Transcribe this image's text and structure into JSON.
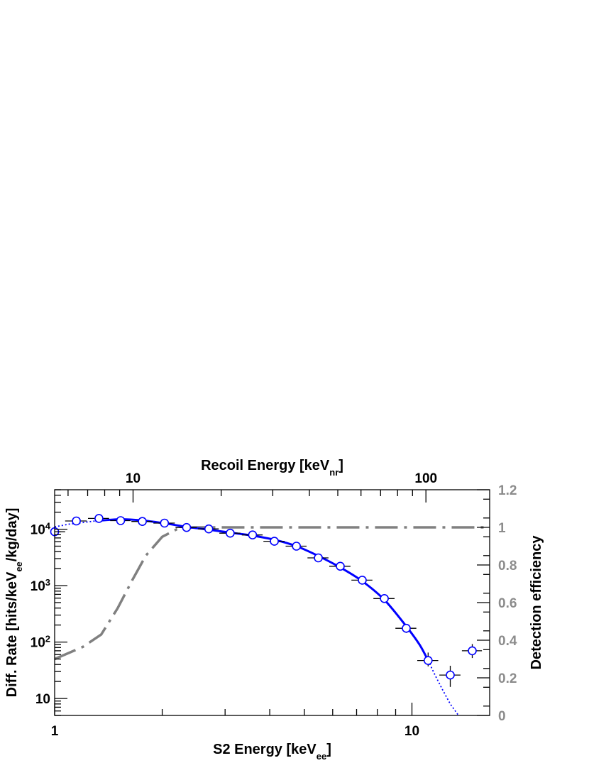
{
  "chart_data": {
    "type": "scatter",
    "x_axis": {
      "label": "S2 Energy [keV",
      "label_sub": "ee",
      "label_end": "]",
      "scale": "log",
      "range": [
        1,
        16.5
      ],
      "tick_labels": [
        {
          "value": 1,
          "text": "1"
        },
        {
          "value": 10,
          "text": "10"
        }
      ]
    },
    "top_axis": {
      "label": "Recoil Energy [keV",
      "label_sub": "nr",
      "label_end": "]",
      "scale": "log",
      "range": [
        5.4,
        165
      ],
      "tick_labels": [
        {
          "value": 10,
          "text": "10"
        },
        {
          "value": 100,
          "text": "100"
        }
      ]
    },
    "y_axis": {
      "label": "Diff. Rate [hits/keV",
      "label_sub": "ee",
      "label_end": "/kg/day]",
      "scale": "log",
      "range": [
        5,
        50000
      ],
      "tick_labels": [
        {
          "value": 10,
          "base": "10",
          "exp": ""
        },
        {
          "value": 100,
          "base": "10",
          "exp": "2"
        },
        {
          "value": 1000,
          "base": "10",
          "exp": "3"
        },
        {
          "value": 10000,
          "base": "10",
          "exp": "4"
        }
      ]
    },
    "y2_axis": {
      "label": "Detection efficiency",
      "range": [
        0,
        1.2
      ],
      "tick_labels": [
        "0",
        "0.2",
        "0.4",
        "0.6",
        "0.8",
        "1",
        "1.2"
      ]
    },
    "series": [
      {
        "kind": "data-points",
        "color": "#0000ff",
        "points": [
          {
            "x": 1.0,
            "y": 9000,
            "xerr": [
              0.05,
              0.07
            ],
            "yerr": [
              500,
              500
            ]
          },
          {
            "x": 1.15,
            "y": 14000,
            "xerr": [
              0.08,
              0.08
            ],
            "yerr": [
              600,
              600
            ]
          },
          {
            "x": 1.33,
            "y": 15500,
            "xerr": [
              0.09,
              0.09
            ],
            "yerr": [
              600,
              600
            ]
          },
          {
            "x": 1.53,
            "y": 14200,
            "xerr": [
              0.1,
              0.1
            ],
            "yerr": [
              600,
              600
            ]
          },
          {
            "x": 1.76,
            "y": 13700,
            "xerr": [
              0.12,
              0.12
            ],
            "yerr": [
              600,
              600
            ]
          },
          {
            "x": 2.03,
            "y": 12800,
            "xerr": [
              0.14,
              0.14
            ],
            "yerr": [
              600,
              600
            ]
          },
          {
            "x": 2.34,
            "y": 10700,
            "xerr": [
              0.16,
              0.16
            ],
            "yerr": [
              500,
              500
            ]
          },
          {
            "x": 2.7,
            "y": 10100,
            "xerr": [
              0.18,
              0.18
            ],
            "yerr": [
              450,
              450
            ]
          },
          {
            "x": 3.1,
            "y": 8500,
            "xerr": [
              0.21,
              0.21
            ],
            "yerr": [
              400,
              400
            ]
          },
          {
            "x": 3.58,
            "y": 7900,
            "xerr": [
              0.24,
              0.24
            ],
            "yerr": [
              350,
              350
            ]
          },
          {
            "x": 4.12,
            "y": 6100,
            "xerr": [
              0.28,
              0.28
            ],
            "yerr": [
              300,
              300
            ]
          },
          {
            "x": 4.75,
            "y": 5000,
            "xerr": [
              0.32,
              0.32
            ],
            "yerr": [
              250,
              250
            ]
          },
          {
            "x": 5.47,
            "y": 3100,
            "xerr": [
              0.37,
              0.37
            ],
            "yerr": [
              200,
              200
            ]
          },
          {
            "x": 6.3,
            "y": 2200,
            "xerr": [
              0.43,
              0.43
            ],
            "yerr": [
              150,
              150
            ]
          },
          {
            "x": 7.26,
            "y": 1250,
            "xerr": [
              0.49,
              0.49
            ],
            "yerr": [
              100,
              100
            ]
          },
          {
            "x": 8.37,
            "y": 590,
            "xerr": [
              0.57,
              0.57
            ],
            "yerr": [
              60,
              60
            ]
          },
          {
            "x": 9.64,
            "y": 175,
            "xerr": [
              0.65,
              0.65
            ],
            "yerr": [
              30,
              30
            ]
          },
          {
            "x": 11.1,
            "y": 47,
            "xerr": [
              0.75,
              0.75
            ],
            "yerr": [
              10,
              18
            ]
          },
          {
            "x": 12.8,
            "y": 26,
            "xerr": [
              0.87,
              0.87
            ],
            "yerr": [
              10,
              12
            ]
          },
          {
            "x": 14.75,
            "y": 70,
            "xerr": [
              0.95,
              0.95
            ],
            "yerr": [
              18,
              22
            ]
          }
        ]
      },
      {
        "kind": "fit-solid",
        "color": "#0000ff",
        "points": [
          [
            1.3,
            14000
          ],
          [
            1.53,
            15000
          ],
          [
            1.76,
            14300
          ],
          [
            2.03,
            12700
          ],
          [
            2.34,
            11000
          ],
          [
            2.7,
            9800
          ],
          [
            3.1,
            8700
          ],
          [
            3.58,
            7700
          ],
          [
            4.12,
            6500
          ],
          [
            4.75,
            5000
          ],
          [
            5.47,
            3350
          ],
          [
            6.3,
            2100
          ],
          [
            7.26,
            1200
          ],
          [
            8.37,
            560
          ],
          [
            9.64,
            190
          ],
          [
            10.5,
            90
          ],
          [
            11.1,
            47
          ]
        ]
      },
      {
        "kind": "fit-dotted",
        "color": "#0000ff",
        "points_low": [
          [
            1.0,
            11000
          ],
          [
            1.1,
            12300
          ],
          [
            1.2,
            13100
          ],
          [
            1.3,
            14000
          ]
        ],
        "points_high": [
          [
            11.1,
            47
          ],
          [
            11.6,
            26
          ],
          [
            12.2,
            14
          ],
          [
            12.8,
            8
          ],
          [
            13.5,
            5
          ]
        ]
      },
      {
        "kind": "efficiency",
        "axis": "right",
        "color": "#808080",
        "points": [
          [
            1.0,
            0.3
          ],
          [
            1.2,
            0.365
          ],
          [
            1.35,
            0.43
          ],
          [
            1.5,
            0.57
          ],
          [
            1.65,
            0.72
          ],
          [
            1.8,
            0.85
          ],
          [
            2.0,
            0.95
          ],
          [
            2.2,
            0.99
          ],
          [
            2.45,
            1.0
          ],
          [
            16.5,
            1.0
          ]
        ]
      }
    ]
  }
}
